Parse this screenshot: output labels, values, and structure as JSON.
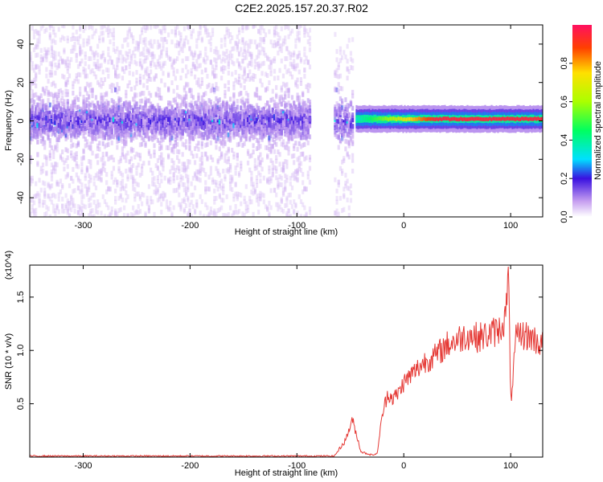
{
  "title": "C2E2.2025.157.20.37.R02",
  "colors": {
    "snr_line": "#e53935",
    "spectrogram_low": "#cda6f0",
    "spectrogram_mid": "#5a18e0",
    "spectrogram_high": "#ff2020"
  },
  "chart_data": [
    {
      "type": "heatmap",
      "title": "",
      "xlabel": "Height of straight line (km)",
      "ylabel": "Frequency (Hz)",
      "xlim": [
        -350,
        130
      ],
      "ylim": [
        -50,
        50
      ],
      "x_ticks": [
        "-300",
        "-200",
        "-100",
        "0",
        "100"
      ],
      "y_ticks": [
        "-40",
        "-20",
        "0",
        "20",
        "40"
      ],
      "colorbar": {
        "label": "Normalized spectral amplitude",
        "range": [
          0.0,
          1.0
        ],
        "ticks": [
          "0.0",
          "0.2",
          "0.4",
          "0.6",
          "0.8"
        ]
      },
      "features": [
        {
          "x_range": [
            -350,
            -87
          ],
          "freq_center": 0,
          "amplitude": 0.15,
          "description": "broadband"
        },
        {
          "x_range": [
            -85,
            -78
          ],
          "freq_center": 0,
          "amplitude": 0.0,
          "description": "gap"
        },
        {
          "x_range": [
            -65,
            -47
          ],
          "freq_center": 0,
          "amplitude": 0.12,
          "description": "narrow band"
        },
        {
          "x_range": [
            -45,
            130
          ],
          "freq_center": 1,
          "amplitude": 0.95,
          "description": "strong narrow line"
        }
      ]
    },
    {
      "type": "line",
      "title": "",
      "xlabel": "Height of straight line (km)",
      "ylabel": "SNR (10 * v/v)",
      "y_multiplier": "(x10^4)",
      "xlim": [
        -350,
        130
      ],
      "ylim": [
        0,
        1.8
      ],
      "x_ticks": [
        "-300",
        "-200",
        "-100",
        "0",
        "100"
      ],
      "y_ticks": [
        "0.5",
        "1.0",
        "1.5"
      ],
      "series": [
        {
          "x": [
            -350,
            -300,
            -250,
            -200,
            -150,
            -100,
            -65,
            -55,
            -48,
            -40,
            -30,
            -25,
            -20,
            -15,
            -10,
            -5,
            0,
            10,
            20,
            30,
            40,
            50,
            60,
            70,
            80,
            90,
            95,
            98,
            100,
            105,
            110,
            120,
            130
          ],
          "values": [
            0.01,
            0.01,
            0.01,
            0.01,
            0.01,
            0.01,
            0.01,
            0.15,
            0.35,
            0.05,
            0.02,
            0.03,
            0.4,
            0.6,
            0.55,
            0.6,
            0.7,
            0.8,
            0.9,
            0.95,
            1.05,
            1.1,
            1.15,
            1.12,
            1.15,
            1.2,
            1.3,
            1.75,
            0.5,
            1.1,
            1.15,
            1.12,
            1.05
          ]
        }
      ]
    }
  ]
}
